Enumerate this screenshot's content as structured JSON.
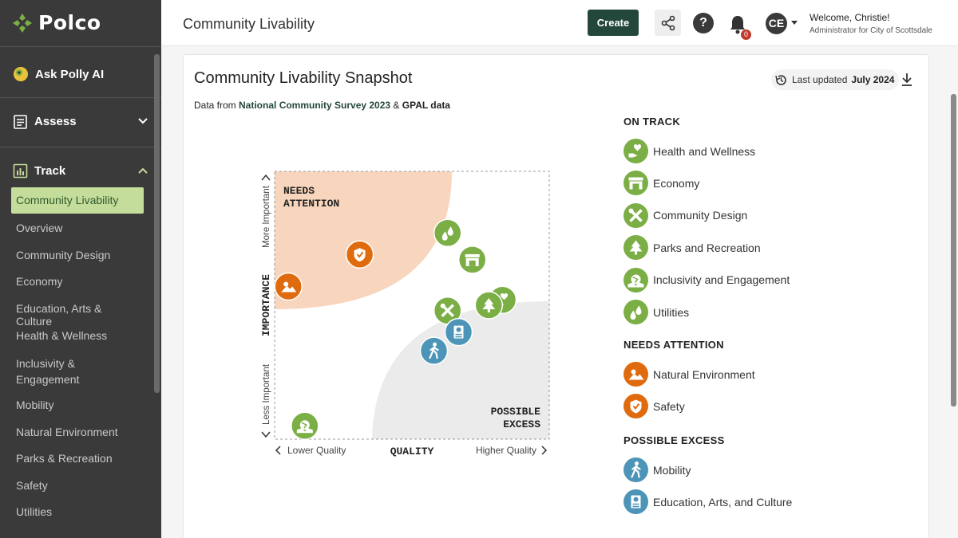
{
  "app": {
    "logo_text": "Polco",
    "colors": {
      "sidebar": "#3a3a3a",
      "active_bg": "#c5dd9b",
      "primary": "#24473c",
      "green": "#7bae45",
      "orange": "#e06b0e",
      "blue": "#4c95b8"
    }
  },
  "sidebar": {
    "ask": {
      "label": "Ask Polly AI",
      "icon": "parrot-icon"
    },
    "assess": {
      "label": "Assess",
      "icon": "clipboard-icon"
    },
    "track": {
      "label": "Track",
      "icon": "bar-chart-icon"
    },
    "items": [
      {
        "label": "Community Livability",
        "active": true
      },
      {
        "label": "Overview"
      },
      {
        "label": "Community Design"
      },
      {
        "label": "Economy"
      },
      {
        "label": "Education, Arts & Culture"
      },
      {
        "label": "Health & Wellness"
      },
      {
        "label": "Inclusivity & Engagement"
      },
      {
        "label": "Mobility"
      },
      {
        "label": "Natural Environment"
      },
      {
        "label": "Parks & Recreation"
      },
      {
        "label": "Safety"
      },
      {
        "label": "Utilities"
      }
    ]
  },
  "header": {
    "title": "Community Livability",
    "create_label": "Create",
    "help_label": "?",
    "notifications": "0",
    "avatar": "CE",
    "welcome": "Welcome, Christie!",
    "role": "Administrator for City of Scottsdale"
  },
  "card": {
    "title": "Community Livability Snapshot",
    "source_prefix": "Data from ",
    "source_ncs": "National Community Survey 2023",
    "source_amp": " & ",
    "source_gpal": "GPAL data",
    "updated_prefix": "Last updated ",
    "updated_date": "July 2024"
  },
  "chart": {
    "quadrant_needs_1": "NEEDS",
    "quadrant_needs_2": "ATTENTION",
    "quadrant_excess_1": "POSSIBLE",
    "quadrant_excess_2": "EXCESS",
    "y_label": "IMPORTANCE",
    "y_top": "More Important",
    "y_bottom": "Less Important",
    "x_label": "QUALITY",
    "x_left": "Lower Quality",
    "x_right": "Higher Quality",
    "points": [
      {
        "name": "Safety",
        "quality": 0.31,
        "importance": 0.69,
        "color": "#e06b0e",
        "icon": "shield-icon"
      },
      {
        "name": "Natural Environment",
        "quality": 0.05,
        "importance": 0.57,
        "color": "#e06b0e",
        "icon": "sun-mountain-icon"
      },
      {
        "name": "Utilities",
        "quality": 0.63,
        "importance": 0.77,
        "color": "#7bae45",
        "icon": "drops-icon"
      },
      {
        "name": "Economy",
        "quality": 0.72,
        "importance": 0.67,
        "color": "#7bae45",
        "icon": "storefront-icon"
      },
      {
        "name": "Health and Wellness",
        "quality": 0.83,
        "importance": 0.52,
        "color": "#7bae45",
        "icon": "heart-hand-icon"
      },
      {
        "name": "Parks and Recreation",
        "quality": 0.78,
        "importance": 0.5,
        "color": "#7bae45",
        "icon": "tree-icon"
      },
      {
        "name": "Community Design",
        "quality": 0.63,
        "importance": 0.48,
        "color": "#7bae45",
        "icon": "tools-icon"
      },
      {
        "name": "Education, Arts, and Culture",
        "quality": 0.67,
        "importance": 0.4,
        "color": "#4c95b8",
        "icon": "book-icon"
      },
      {
        "name": "Mobility",
        "quality": 0.58,
        "importance": 0.33,
        "color": "#4c95b8",
        "icon": "walker-icon"
      },
      {
        "name": "Inclusivity and Engagement",
        "quality": 0.11,
        "importance": 0.05,
        "color": "#7bae45",
        "icon": "globe-hands-icon"
      }
    ]
  },
  "legend": {
    "on_track": "ON TRACK",
    "needs_attention": "NEEDS ATTENTION",
    "possible_excess": "POSSIBLE EXCESS",
    "on_track_items": [
      "Health and Wellness",
      "Economy",
      "Community Design",
      "Parks and Recreation",
      "Inclusivity and Engagement",
      "Utilities"
    ],
    "needs_items": [
      "Natural Environment",
      "Safety"
    ],
    "excess_items": [
      "Mobility",
      "Education, Arts, and Culture"
    ]
  }
}
